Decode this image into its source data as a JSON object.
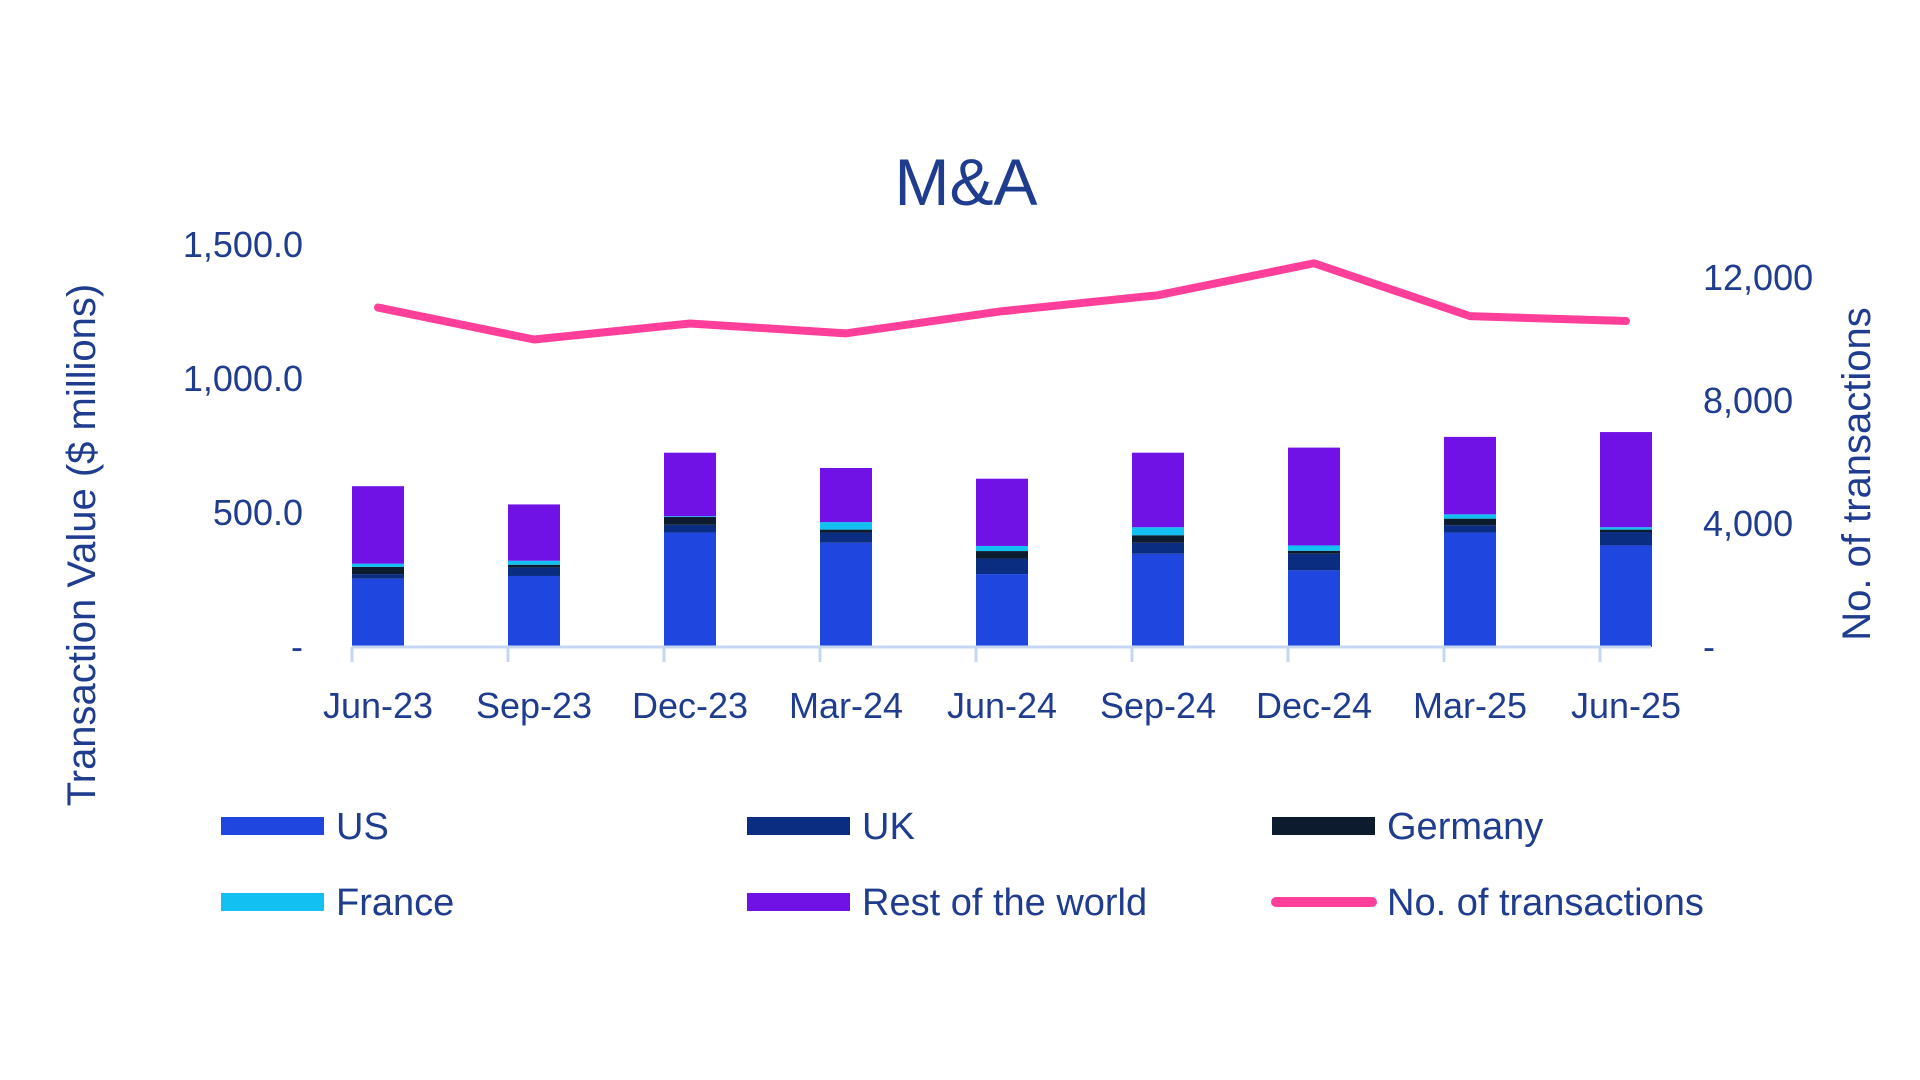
{
  "chart_data": {
    "type": "bar",
    "title": "M&A",
    "ylabel": "Transaction Value ($ millions)",
    "y2label": "No. of transactions",
    "ylim": [
      0,
      1500
    ],
    "y2lim": [
      0,
      12000
    ],
    "yticks": [
      "-",
      "500.0",
      "1,000.0",
      "1,500.0"
    ],
    "y2ticks": [
      "-",
      "4,000",
      "8,000",
      "12,000"
    ],
    "categories": [
      "Jun-23",
      "Sep-23",
      "Dec-23",
      "Mar-24",
      "Jun-24",
      "Sep-24",
      "Dec-24",
      "Mar-25",
      "Jun-25"
    ],
    "series": [
      {
        "name": "US",
        "type": "bar",
        "color": "#1f47e0",
        "values": [
          255,
          265,
          427,
          389,
          272,
          348,
          286,
          427,
          379
        ]
      },
      {
        "name": "UK",
        "type": "bar",
        "color": "#0a2d82",
        "values": [
          17,
          32,
          29,
          38,
          58,
          41,
          62,
          27,
          50
        ]
      },
      {
        "name": "Germany",
        "type": "bar",
        "color": "#0d1b2e",
        "values": [
          27,
          10,
          29,
          11,
          28,
          28,
          11,
          25,
          9
        ]
      },
      {
        "name": "France",
        "type": "bar",
        "color": "#12c0f2",
        "values": [
          12,
          15,
          3,
          28,
          19,
          30,
          20,
          16,
          9
        ]
      },
      {
        "name": "Rest of the world",
        "type": "bar",
        "color": "#7012e6",
        "values": [
          289,
          210,
          237,
          202,
          251,
          278,
          365,
          289,
          355
        ]
      },
      {
        "name": "No. of transactions",
        "type": "line",
        "axis": "right",
        "color": "#ff3f99",
        "values": [
          11040,
          10000,
          10520,
          10200,
          10920,
          11440,
          12480,
          10760,
          10600
        ]
      }
    ],
    "legend_position": "bottom",
    "grid": false
  }
}
